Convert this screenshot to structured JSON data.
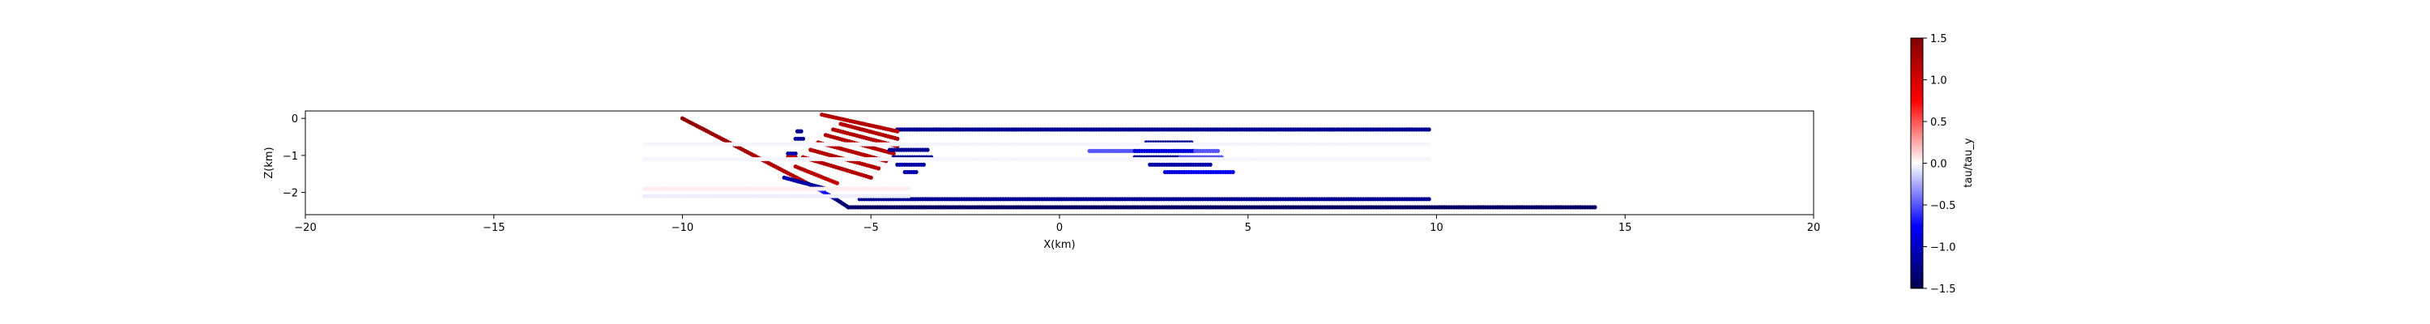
{
  "chart_data": {
    "type": "scatter",
    "title": "",
    "xlabel": "X(km)",
    "ylabel": "Z(km)",
    "xlim": [
      -20,
      20
    ],
    "ylim": [
      -2.6,
      0.2
    ],
    "xticks": [
      -20,
      -15,
      -10,
      -5,
      0,
      5,
      10,
      15,
      20
    ],
    "yticks": [
      0,
      -1,
      -2
    ],
    "grid": false,
    "colorbar": {
      "label": "tau/tau_y",
      "range": [
        -1.5,
        1.5
      ],
      "ticks": [
        1.5,
        1.0,
        0.5,
        0.0,
        -0.5,
        -1.0,
        -1.5
      ],
      "colormap": "seismic",
      "colors": [
        "#00004c",
        "#0000ff",
        "#ffffff",
        "#ff0000",
        "#800000"
      ]
    },
    "segments": [
      {
        "x": [
          -10.0,
          -6.5
        ],
        "z": [
          0.0,
          -1.85
        ],
        "tau_start": 1.4,
        "tau_end": 1.1
      },
      {
        "x": [
          -6.5,
          -5.9
        ],
        "z": [
          -1.85,
          -2.2
        ],
        "tau_start": -0.3,
        "tau_end": -1.2
      },
      {
        "x": [
          -5.9,
          -5.6
        ],
        "z": [
          -2.2,
          -2.4
        ],
        "tau_start": -1.3,
        "tau_end": -1.4
      },
      {
        "x": [
          -5.6,
          14.2
        ],
        "z": [
          -2.4,
          -2.4
        ],
        "tau_start": -1.4,
        "tau_end": -1.4
      },
      {
        "x": [
          -5.3,
          9.8
        ],
        "z": [
          -2.18,
          -2.18
        ],
        "tau_start": -1.2,
        "tau_end": -1.2
      },
      {
        "x": [
          -4.3,
          9.8
        ],
        "z": [
          -0.3,
          -0.3
        ],
        "tau_start": -1.2,
        "tau_end": -1.2
      },
      {
        "x": [
          -7.3,
          -6.2
        ],
        "z": [
          -1.6,
          -1.9
        ],
        "tau_start": -1.1,
        "tau_end": -1.2
      },
      {
        "x": [
          -7.0,
          -5.9
        ],
        "z": [
          -1.3,
          -1.75
        ],
        "tau_start": 1.2,
        "tau_end": 1.1
      },
      {
        "x": [
          -6.8,
          -5.0
        ],
        "z": [
          -1.05,
          -1.6
        ],
        "tau_start": 1.2,
        "tau_end": 1.2
      },
      {
        "x": [
          -6.6,
          -4.8
        ],
        "z": [
          -0.85,
          -1.35
        ],
        "tau_start": 1.2,
        "tau_end": 1.2
      },
      {
        "x": [
          -6.4,
          -4.6
        ],
        "z": [
          -0.65,
          -1.15
        ],
        "tau_start": 1.2,
        "tau_end": 1.2
      },
      {
        "x": [
          -6.2,
          -4.4
        ],
        "z": [
          -0.45,
          -0.95
        ],
        "tau_start": 1.2,
        "tau_end": 1.2
      },
      {
        "x": [
          -6.0,
          -4.3
        ],
        "z": [
          -0.3,
          -0.75
        ],
        "tau_start": 1.2,
        "tau_end": 1.2
      },
      {
        "x": [
          -5.8,
          -4.3
        ],
        "z": [
          -0.15,
          -0.55
        ],
        "tau_start": 1.2,
        "tau_end": 1.2
      },
      {
        "x": [
          -6.3,
          -4.3
        ],
        "z": [
          0.1,
          -0.35
        ],
        "tau_start": 1.2,
        "tau_end": 1.2
      },
      {
        "x": [
          -7.0,
          -6.8
        ],
        "z": [
          -0.55,
          -0.55
        ],
        "tau_start": -1.2,
        "tau_end": -1.2
      },
      {
        "x": [
          -7.2,
          -7.0
        ],
        "z": [
          -0.95,
          -0.95
        ],
        "tau_start": -1.1,
        "tau_end": -1.1
      },
      {
        "x": [
          -7.2,
          -7.0
        ],
        "z": [
          -1.05,
          -1.05
        ],
        "tau_start": 1.1,
        "tau_end": 1.1
      },
      {
        "x": [
          -6.95,
          -6.85
        ],
        "z": [
          -0.35,
          -0.35
        ],
        "tau_start": -1.2,
        "tau_end": -1.2
      },
      {
        "x": [
          -4.5,
          -3.5
        ],
        "z": [
          -0.85,
          -0.85
        ],
        "tau_start": -1.2,
        "tau_end": -1.2
      },
      {
        "x": [
          -4.4,
          -3.4
        ],
        "z": [
          -1.05,
          -1.05
        ],
        "tau_start": -1.2,
        "tau_end": -1.2
      },
      {
        "x": [
          -4.3,
          -3.6
        ],
        "z": [
          -1.25,
          -1.25
        ],
        "tau_start": -1.1,
        "tau_end": -1.1
      },
      {
        "x": [
          -4.1,
          -3.8
        ],
        "z": [
          -1.45,
          -1.45
        ],
        "tau_start": -1.1,
        "tau_end": -1.1
      },
      {
        "x": [
          2.3,
          3.5
        ],
        "z": [
          -0.65,
          -0.65
        ],
        "tau_start": -1.2,
        "tau_end": -1.2
      },
      {
        "x": [
          0.8,
          2.0
        ],
        "z": [
          -0.88,
          -0.88
        ],
        "tau_start": -0.5,
        "tau_end": -0.5
      },
      {
        "x": [
          2.0,
          3.6
        ],
        "z": [
          -0.88,
          -0.88
        ],
        "tau_start": -0.9,
        "tau_end": -0.9
      },
      {
        "x": [
          3.6,
          4.2
        ],
        "z": [
          -0.88,
          -0.88
        ],
        "tau_start": -0.5,
        "tau_end": -0.5
      },
      {
        "x": [
          2.0,
          3.2
        ],
        "z": [
          -1.05,
          -1.05
        ],
        "tau_start": -1.2,
        "tau_end": -1.2
      },
      {
        "x": [
          3.2,
          4.3
        ],
        "z": [
          -1.05,
          -1.05
        ],
        "tau_start": -0.5,
        "tau_end": -0.5
      },
      {
        "x": [
          2.4,
          4.0
        ],
        "z": [
          -1.25,
          -1.25
        ],
        "tau_start": -1.1,
        "tau_end": -1.1
      },
      {
        "x": [
          2.8,
          3.3
        ],
        "z": [
          -1.45,
          -1.45
        ],
        "tau_start": -0.9,
        "tau_end": -0.9
      },
      {
        "x": [
          3.3,
          4.6
        ],
        "z": [
          -1.45,
          -1.45
        ],
        "tau_start": -0.8,
        "tau_end": -0.8
      },
      {
        "x": [
          -11.0,
          -4.0
        ],
        "z": [
          -2.1,
          -2.1
        ],
        "tau_start": -0.05,
        "tau_end": -0.05
      },
      {
        "x": [
          -11.0,
          -4.0
        ],
        "z": [
          -1.9,
          -1.9
        ],
        "tau_start": 0.05,
        "tau_end": 0.05
      },
      {
        "x": [
          -11.0,
          9.8
        ],
        "z": [
          -1.1,
          -1.1
        ],
        "tau_start": -0.03,
        "tau_end": -0.03
      },
      {
        "x": [
          -11.0,
          9.8
        ],
        "z": [
          -0.7,
          -0.7
        ],
        "tau_start": -0.03,
        "tau_end": -0.03
      }
    ]
  }
}
